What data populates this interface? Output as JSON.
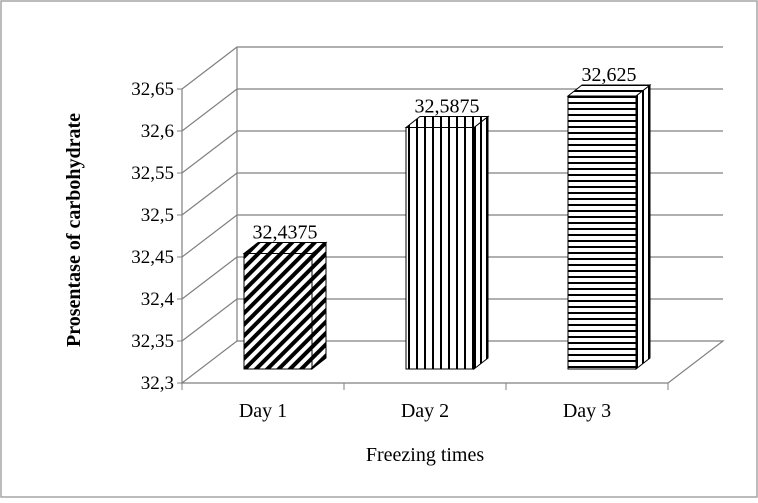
{
  "chart_data": {
    "type": "bar",
    "title": "",
    "xlabel": "Freezing times",
    "ylabel": "Prosentase of carbohydrate",
    "categories": [
      "Day 1",
      "Day 2",
      "Day 3"
    ],
    "values": [
      32.4375,
      32.5875,
      32.625
    ],
    "data_labels": [
      "32,4375",
      "32,5875",
      "32,625"
    ],
    "ylim": [
      32.3,
      32.65
    ],
    "yticks": [
      32.3,
      32.35,
      32.4,
      32.45,
      32.5,
      32.55,
      32.6,
      32.65
    ],
    "ytick_labels": [
      "32,3",
      "32,35",
      "32,4",
      "32,45",
      "32,5",
      "32,55",
      "32,6",
      "32,65"
    ],
    "grid": true,
    "style": "3d-clustered-column",
    "fill_patterns": [
      "diagonal-stripes",
      "vertical-stripes",
      "horizontal-stripes"
    ],
    "colors": {
      "ink": "#000000",
      "grid": "#808080",
      "background": "#ffffff",
      "border": "#a6a6a6"
    }
  }
}
